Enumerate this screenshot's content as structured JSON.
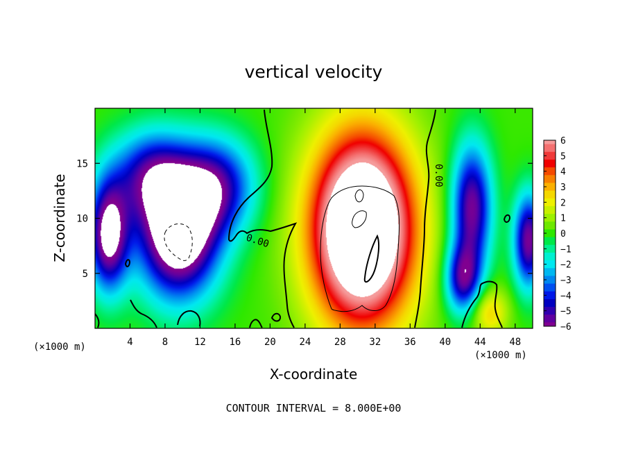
{
  "chart_data": {
    "type": "heatmap",
    "title": "vertical velocity",
    "xlabel": "X-coordinate",
    "ylabel": "Z-coordinate",
    "x_units": "(×1000 m)",
    "x_units_right": "(×1000 m)",
    "xlim": [
      0,
      50
    ],
    "ylim": [
      0,
      20
    ],
    "x_ticks": [
      4,
      8,
      12,
      16,
      20,
      24,
      28,
      32,
      36,
      40,
      44,
      48
    ],
    "y_ticks": [
      5,
      10,
      15
    ],
    "colorbar": {
      "ticks": [
        6,
        5,
        4,
        3,
        2,
        1,
        0,
        -1,
        -2,
        -3,
        -4,
        -5,
        -6
      ],
      "levels": [
        {
          "value": 6,
          "color": "#f59a9a"
        },
        {
          "value": 5.5,
          "color": "#f47070"
        },
        {
          "value": 5,
          "color": "#f03a3a"
        },
        {
          "value": 4.5,
          "color": "#f00000"
        },
        {
          "value": 4,
          "color": "#f54a00"
        },
        {
          "value": 3.5,
          "color": "#f88000"
        },
        {
          "value": 3,
          "color": "#fbb000"
        },
        {
          "value": 2.5,
          "color": "#f5d800"
        },
        {
          "value": 2,
          "color": "#eef000"
        },
        {
          "value": 1.5,
          "color": "#c8f000"
        },
        {
          "value": 1,
          "color": "#9cf000"
        },
        {
          "value": 0.5,
          "color": "#6ee800"
        },
        {
          "value": 0,
          "color": "#2ee800"
        },
        {
          "value": -0.5,
          "color": "#00e848"
        },
        {
          "value": -1,
          "color": "#00f090"
        },
        {
          "value": -1.5,
          "color": "#00f0d0"
        },
        {
          "value": -2,
          "color": "#00e8f0"
        },
        {
          "value": -2.5,
          "color": "#00b8f0"
        },
        {
          "value": -3,
          "color": "#0088f0"
        },
        {
          "value": -3.5,
          "color": "#0050f0"
        },
        {
          "value": -4,
          "color": "#0018e8"
        },
        {
          "value": -4.5,
          "color": "#0000c0"
        },
        {
          "value": -5,
          "color": "#3000b0"
        },
        {
          "value": -5.5,
          "color": "#6000a0"
        },
        {
          "value": -6,
          "color": "#800090"
        }
      ]
    },
    "contour_labels": [
      "0.00",
      "0.00"
    ],
    "features": [
      {
        "kind": "updraft",
        "x": 30.5,
        "z": 9,
        "sx": 4.2,
        "sz": 6.2,
        "amp": 10
      },
      {
        "kind": "downdraft",
        "x": 9.5,
        "z": 9,
        "sx": 3.2,
        "sz": 4.2,
        "amp": -9
      },
      {
        "kind": "downdraft",
        "x": 1.5,
        "z": 8.5,
        "sx": 1.6,
        "sz": 3.5,
        "amp": -7
      },
      {
        "kind": "downdraft",
        "x": 43,
        "z": 11,
        "sx": 1.6,
        "sz": 4,
        "amp": -6
      },
      {
        "kind": "downdraft",
        "x": 42,
        "z": 4.5,
        "sx": 1.4,
        "sz": 2.2,
        "amp": -5
      },
      {
        "kind": "downdraft",
        "x": 14,
        "z": 13,
        "sx": 3,
        "sz": 3,
        "amp": -4.5
      },
      {
        "kind": "downdraft",
        "x": 6,
        "z": 14,
        "sx": 3,
        "sz": 2.8,
        "amp": -4
      },
      {
        "kind": "downdraft",
        "x": 49.5,
        "z": 8,
        "sx": 1.2,
        "sz": 3,
        "amp": -6
      },
      {
        "kind": "updraft",
        "x": 45,
        "z": 1.5,
        "sx": 1.5,
        "sz": 1.6,
        "amp": 2.5
      }
    ]
  },
  "footer": "CONTOUR INTERVAL = 8.000E+00"
}
